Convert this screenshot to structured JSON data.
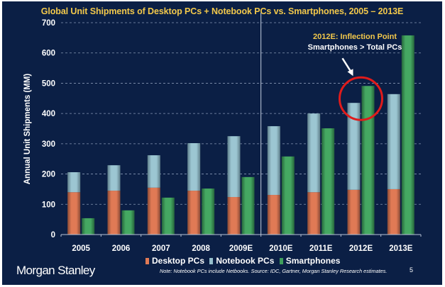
{
  "brand": "Morgan Stanley",
  "page_number": "5",
  "note": "Note: Notebook PCs include Netbooks. Source: IDC, Gartner, Morgan Stanley Research estimates.",
  "annotation": {
    "line1": "2012E: Inflection Point",
    "line2": "Smartphones > Total PCs",
    "highlight_category": "2012E"
  },
  "colors": {
    "background": "#0b1f45",
    "title": "#f2c84b",
    "desktop": "#e07a55",
    "notebook": "#95bfcc",
    "smartphone": "#3f9e5c",
    "circle": "#e01b1b"
  },
  "chart_data": {
    "type": "bar",
    "title": "Global Unit Shipments of Desktop PCs + Notebook PCs vs. Smartphones, 2005 – 2013E",
    "xlabel": "",
    "ylabel": "Annual Unit Shipments (MM)",
    "ylim": [
      0,
      700
    ],
    "yticks": [
      0,
      100,
      200,
      300,
      400,
      500,
      600,
      700
    ],
    "grid": true,
    "legend_position": "bottom-center",
    "categories": [
      "2005",
      "2006",
      "2007",
      "2008",
      "2009E",
      "2010E",
      "2011E",
      "2012E",
      "2013E"
    ],
    "series": [
      {
        "name": "Desktop PCs",
        "stack": "pcs",
        "values": [
          140,
          145,
          155,
          145,
          124,
          131,
          140,
          148,
          150
        ]
      },
      {
        "name": "Notebook PCs",
        "stack": "pcs",
        "values": [
          66,
          84,
          107,
          157,
          201,
          227,
          260,
          287,
          314
        ]
      },
      {
        "name": "Smartphones",
        "stack": "smartphones",
        "values": [
          54,
          80,
          122,
          152,
          190,
          258,
          351,
          491,
          658
        ]
      }
    ],
    "divider_after_category": "2009E"
  }
}
